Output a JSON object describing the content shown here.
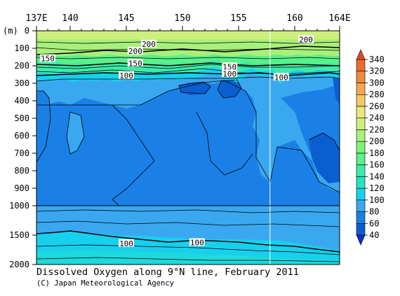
{
  "chart_data": {
    "type": "heatmap",
    "title": "Dissolved Oxygen along 9°N line, February 2011",
    "credit": "(C) Japan Meteorological Agency",
    "x_axis": {
      "range": [
        137,
        164
      ],
      "ticks": [
        {
          "value": 137,
          "label": "137E"
        },
        {
          "value": 140,
          "label": "140"
        },
        {
          "value": 145,
          "label": "145"
        },
        {
          "value": 150,
          "label": "150"
        },
        {
          "value": 155,
          "label": "155"
        },
        {
          "value": 160,
          "label": "160"
        },
        {
          "value": 164,
          "label": "164E"
        }
      ],
      "position": "top"
    },
    "y_axis": {
      "unit_label": "(m)",
      "upper_range": [
        0,
        1000
      ],
      "lower_range": [
        1000,
        2000
      ],
      "upper_ticks": [
        0,
        100,
        200,
        300,
        400,
        500,
        600,
        700,
        800,
        900,
        1000
      ],
      "lower_ticks": [
        1500,
        2000
      ],
      "reversed": true
    },
    "colorbar": {
      "levels": [
        40,
        60,
        80,
        100,
        120,
        140,
        160,
        180,
        200,
        220,
        240,
        260,
        280,
        300,
        320,
        340
      ],
      "colors": [
        "#0a5fd0",
        "#1a80e6",
        "#3aa8f0",
        "#17d0ee",
        "#27e3c3",
        "#3eeaa8",
        "#5af08a",
        "#7ff27a",
        "#a8f07a",
        "#cdf07c",
        "#ece77a",
        "#f4c766",
        "#f5a851",
        "#f08a3e",
        "#ea6a30",
        "#e04a22"
      ],
      "extend": "both",
      "position": "right"
    },
    "contour_labels": [
      {
        "lon": 147.0,
        "depth": 75,
        "label": "200"
      },
      {
        "lon": 145.8,
        "depth": 115,
        "label": "200"
      },
      {
        "lon": 161.0,
        "depth": 50,
        "label": "200"
      },
      {
        "lon": 138.0,
        "depth": 158,
        "label": "150"
      },
      {
        "lon": 145.8,
        "depth": 185,
        "label": "150"
      },
      {
        "lon": 154.2,
        "depth": 205,
        "label": "150"
      },
      {
        "lon": 145.0,
        "depth": 255,
        "label": "100"
      },
      {
        "lon": 154.2,
        "depth": 245,
        "label": "100"
      },
      {
        "lon": 158.8,
        "depth": 265,
        "label": "100"
      },
      {
        "lon": 145.0,
        "depth": 1640,
        "label": "100"
      },
      {
        "lon": 151.3,
        "depth": 1625,
        "label": "100"
      }
    ],
    "station_line_lon": 157.8
  }
}
